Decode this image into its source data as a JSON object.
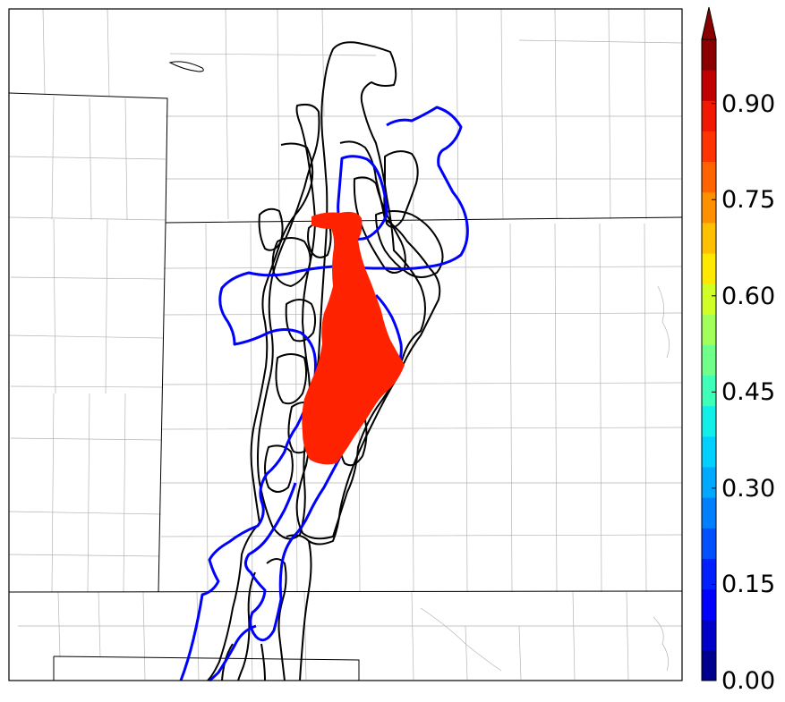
{
  "colorbar": {
    "ticks": [
      "0.00",
      "0.15",
      "0.30",
      "0.45",
      "0.60",
      "0.75",
      "0.90"
    ],
    "tick_values": [
      0.0,
      0.15,
      0.3,
      0.45,
      0.6,
      0.75,
      0.9
    ],
    "range": [
      0,
      1
    ],
    "extend": "max",
    "colors": [
      "#00008f",
      "#0000c8",
      "#0000ff",
      "#0020ff",
      "#0050ff",
      "#0080ff",
      "#00a8ff",
      "#00d0ff",
      "#10f0e8",
      "#40ffb8",
      "#70ff88",
      "#a0ff58",
      "#d0ff28",
      "#ffe800",
      "#ffc000",
      "#ff9000",
      "#ff6400",
      "#ff3400",
      "#f01800",
      "#c00000",
      "#8a0000"
    ]
  },
  "map": {
    "highlight_color": "#ff2200",
    "contour_color_blue": "#0000ff",
    "contour_color_black": "#000000"
  }
}
